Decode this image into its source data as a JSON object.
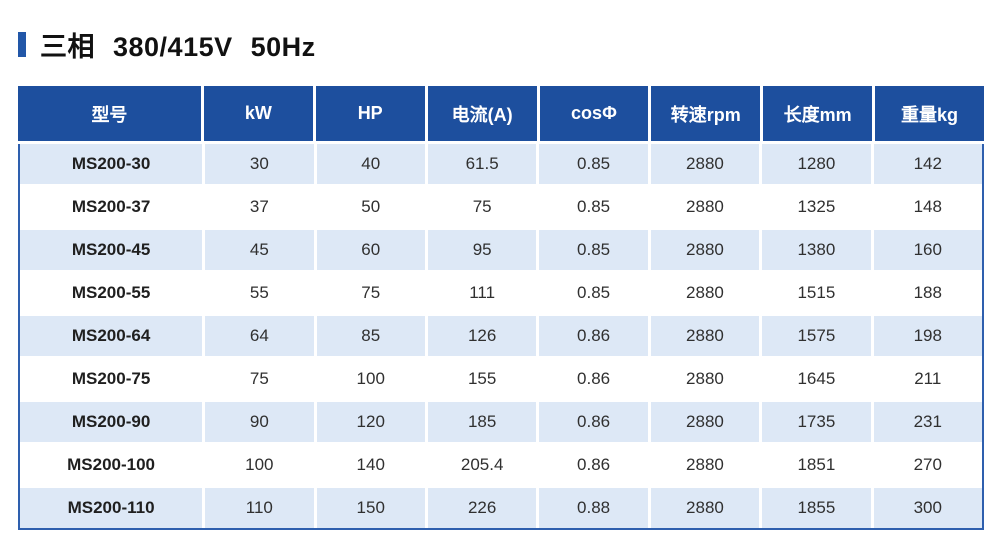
{
  "page": {
    "title": "三相 380/415V 50Hz"
  },
  "colors": {
    "accent": "#2257A8",
    "header_bg": "#1D4F9E",
    "header_text": "#FFFFFF",
    "row_alt_bg": "#DDE8F6",
    "table_border": "#2E5FAE",
    "body_text": "#303030",
    "title_text": "#111111"
  },
  "table": {
    "columns": [
      "型号",
      "kW",
      "HP",
      "电流(A)",
      "cosΦ",
      "转速rpm",
      "长度mm",
      "重量kg"
    ],
    "rows": [
      [
        "MS200-30",
        "30",
        "40",
        "61.5",
        "0.85",
        "2880",
        "1280",
        "142"
      ],
      [
        "MS200-37",
        "37",
        "50",
        "75",
        "0.85",
        "2880",
        "1325",
        "148"
      ],
      [
        "MS200-45",
        "45",
        "60",
        "95",
        "0.85",
        "2880",
        "1380",
        "160"
      ],
      [
        "MS200-55",
        "55",
        "75",
        "111",
        "0.85",
        "2880",
        "1515",
        "188"
      ],
      [
        "MS200-64",
        "64",
        "85",
        "126",
        "0.86",
        "2880",
        "1575",
        "198"
      ],
      [
        "MS200-75",
        "75",
        "100",
        "155",
        "0.86",
        "2880",
        "1645",
        "211"
      ],
      [
        "MS200-90",
        "90",
        "120",
        "185",
        "0.86",
        "2880",
        "1735",
        "231"
      ],
      [
        "MS200-100",
        "100",
        "140",
        "205.4",
        "0.86",
        "2880",
        "1851",
        "270"
      ],
      [
        "MS200-110",
        "110",
        "150",
        "226",
        "0.88",
        "2880",
        "1855",
        "300"
      ]
    ]
  }
}
